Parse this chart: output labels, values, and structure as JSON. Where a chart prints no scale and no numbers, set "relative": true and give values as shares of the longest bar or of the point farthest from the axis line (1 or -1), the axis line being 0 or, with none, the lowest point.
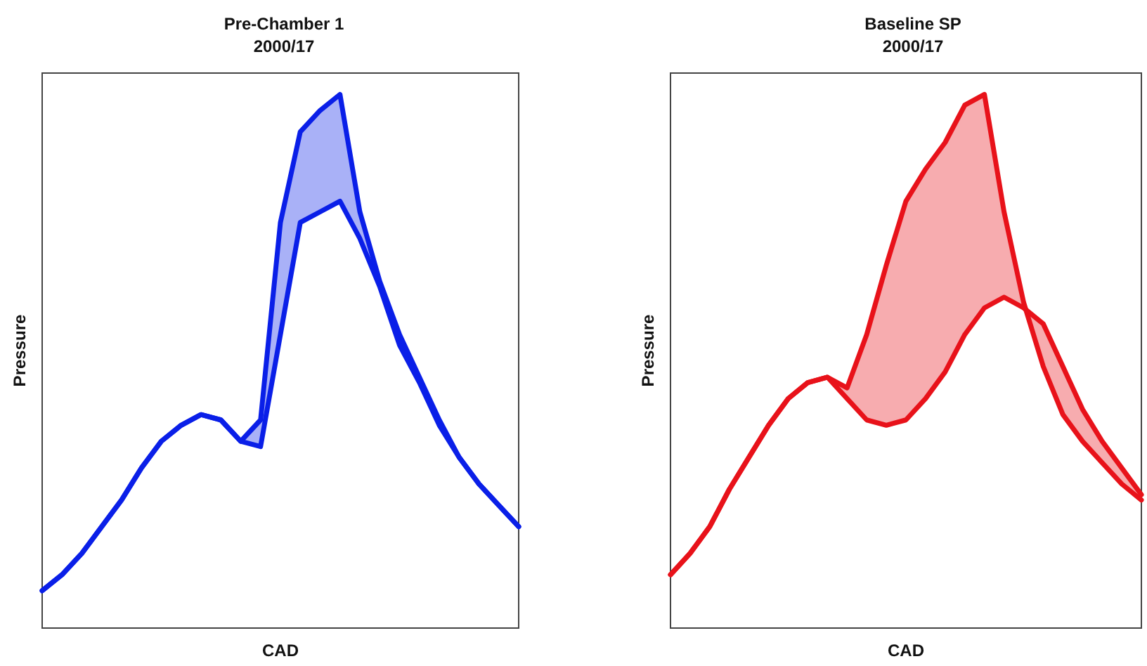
{
  "chart_data": [
    {
      "type": "line",
      "title": "Pre-Chamber 1",
      "subtitle": "2000/17",
      "xlabel": "CAD",
      "ylabel": "Pressure",
      "relative": true,
      "grid": false,
      "tick_labels": false,
      "marker": "none",
      "line_style": "solid",
      "categories": [
        null,
        null,
        null,
        null,
        null,
        null,
        null,
        null,
        null,
        null,
        null,
        null,
        null,
        null,
        null,
        null,
        null,
        null,
        null,
        null,
        null,
        null,
        null,
        null,
        null
      ],
      "series": [
        {
          "color": "#0a1fe8",
          "values": [
            0.07,
            0.1,
            0.14,
            0.19,
            0.24,
            0.3,
            0.35,
            0.38,
            0.4,
            0.39,
            0.35,
            0.39,
            0.76,
            0.93,
            0.97,
            1,
            0.78,
            0.65,
            0.55,
            0.47,
            0.39,
            0.32,
            0.27,
            0.23,
            0.19
          ],
          "lower": [
            0.07,
            0.1,
            0.14,
            0.19,
            0.24,
            0.3,
            0.35,
            0.38,
            0.4,
            0.39,
            0.35,
            0.34,
            0.55,
            0.76,
            0.78,
            0.8,
            0.73,
            0.64,
            0.53,
            0.46,
            0.38,
            0.32,
            0.27,
            0.23,
            0.19
          ],
          "upper": [
            0.07,
            0.1,
            0.14,
            0.19,
            0.24,
            0.3,
            0.35,
            0.38,
            0.4,
            0.39,
            0.35,
            0.39,
            0.76,
            0.93,
            0.97,
            1,
            0.78,
            0.65,
            0.55,
            0.47,
            0.39,
            0.32,
            0.27,
            0.23,
            0.19
          ]
        },
        {
          "color": "#0a1fe8",
          "values": [
            0.07,
            0.1,
            0.14,
            0.19,
            0.24,
            0.3,
            0.35,
            0.38,
            0.4,
            0.39,
            0.35,
            0.34,
            0.55,
            0.76,
            0.78,
            0.8,
            0.73,
            0.64,
            0.53,
            0.46,
            0.38,
            0.32,
            0.27,
            0.23,
            0.19
          ]
        }
      ]
    },
    {
      "type": "line",
      "title": "Baseline SP",
      "subtitle": "2000/17",
      "xlabel": "CAD",
      "ylabel": "Pressure",
      "relative": true,
      "grid": false,
      "tick_labels": false,
      "marker": "none",
      "line_style": "solid",
      "categories": [
        null,
        null,
        null,
        null,
        null,
        null,
        null,
        null,
        null,
        null,
        null,
        null,
        null,
        null,
        null,
        null,
        null,
        null,
        null,
        null,
        null,
        null,
        null,
        null,
        null
      ],
      "series": [
        {
          "color": "#e8121a",
          "values": [
            0.1,
            0.14,
            0.19,
            0.26,
            0.32,
            0.38,
            0.43,
            0.46,
            0.47,
            0.45,
            0.55,
            0.68,
            0.8,
            0.86,
            0.91,
            0.98,
            1,
            0.78,
            0.61,
            0.49,
            0.4,
            0.35,
            0.31,
            0.27,
            0.24
          ],
          "lower": [
            0.1,
            0.14,
            0.19,
            0.26,
            0.32,
            0.38,
            0.43,
            0.46,
            0.47,
            0.43,
            0.39,
            0.38,
            0.39,
            0.43,
            0.48,
            0.55,
            0.6,
            0.62,
            0.6,
            0.57,
            0.49,
            0.41,
            0.35,
            0.3,
            0.25
          ],
          "upper": [
            0.1,
            0.14,
            0.19,
            0.26,
            0.32,
            0.38,
            0.43,
            0.46,
            0.47,
            0.45,
            0.55,
            0.68,
            0.8,
            0.86,
            0.91,
            0.98,
            1,
            0.78,
            0.61,
            0.49,
            0.4,
            0.35,
            0.31,
            0.27,
            0.24
          ]
        },
        {
          "color": "#e8121a",
          "values": [
            0.1,
            0.14,
            0.19,
            0.26,
            0.32,
            0.38,
            0.43,
            0.46,
            0.47,
            0.43,
            0.39,
            0.38,
            0.39,
            0.43,
            0.48,
            0.55,
            0.6,
            0.62,
            0.6,
            0.57,
            0.49,
            0.41,
            0.35,
            0.3,
            0.25
          ]
        }
      ]
    }
  ]
}
